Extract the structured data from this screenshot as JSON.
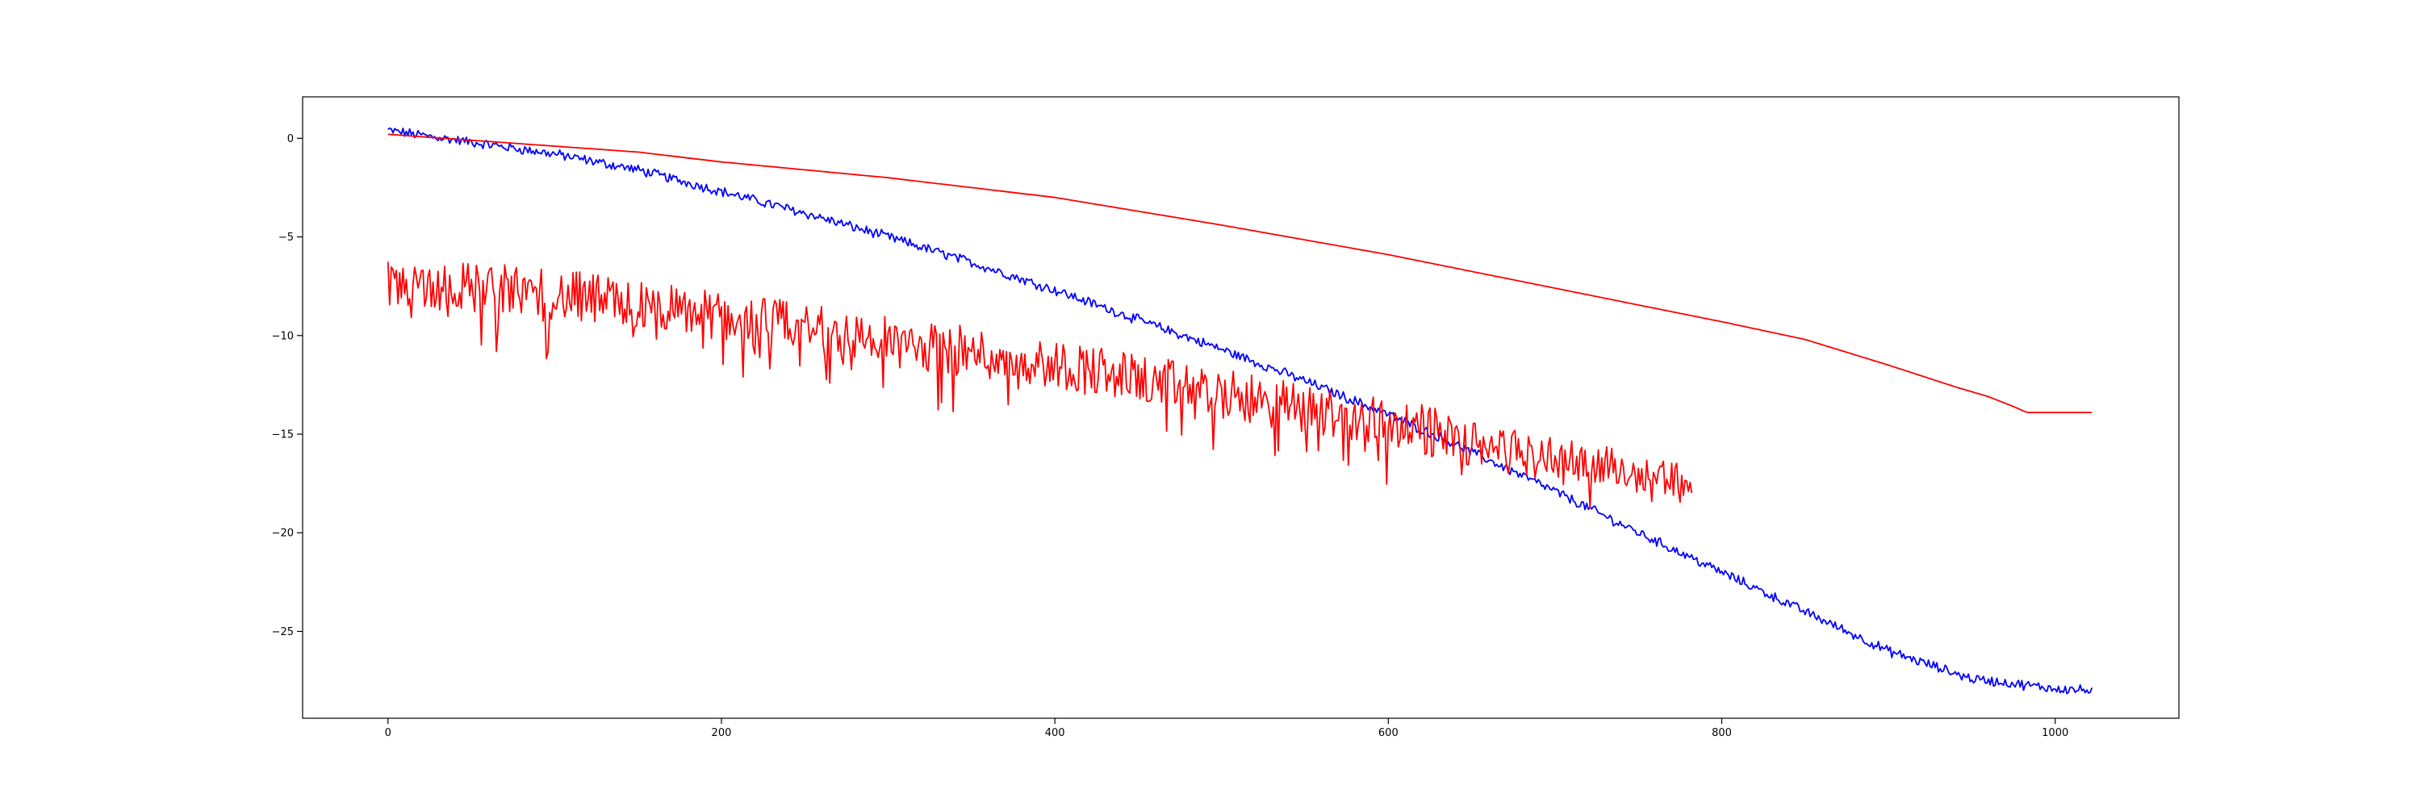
{
  "chart_data": {
    "type": "line",
    "title": "",
    "xlabel": "",
    "ylabel": "",
    "xlim": [
      -51.2,
      1074.2
    ],
    "ylim": [
      -29.4,
      2.1
    ],
    "grid": false,
    "legend": "none",
    "xticks": [
      0,
      200,
      400,
      600,
      800,
      1000
    ],
    "yticks": [
      0,
      -5,
      -10,
      -15,
      -20,
      -25
    ],
    "series": [
      {
        "color": "#0000ff",
        "kind": "noisy",
        "noise": 0.22,
        "anchors": [
          [
            0,
            0.4
          ],
          [
            50,
            -0.2
          ],
          [
            100,
            -0.8
          ],
          [
            150,
            -1.6
          ],
          [
            200,
            -2.7
          ],
          [
            250,
            -3.8
          ],
          [
            300,
            -5.0
          ],
          [
            350,
            -6.3
          ],
          [
            400,
            -7.7
          ],
          [
            450,
            -9.2
          ],
          [
            500,
            -10.7
          ],
          [
            550,
            -12.3
          ],
          [
            600,
            -14.0
          ],
          [
            650,
            -15.9
          ],
          [
            700,
            -17.9
          ],
          [
            750,
            -20.0
          ],
          [
            800,
            -22.0
          ],
          [
            850,
            -24.0
          ],
          [
            900,
            -26.0
          ],
          [
            950,
            -27.4
          ],
          [
            1000,
            -27.9
          ],
          [
            1022,
            -28.0
          ]
        ]
      },
      {
        "color": "#ff0000",
        "kind": "smooth",
        "anchors": [
          [
            0,
            0.2
          ],
          [
            100,
            -0.4
          ],
          [
            150,
            -0.7
          ],
          [
            200,
            -1.2
          ],
          [
            300,
            -2.0
          ],
          [
            350,
            -2.5
          ],
          [
            400,
            -3.0
          ],
          [
            500,
            -4.4
          ],
          [
            600,
            -5.9
          ],
          [
            700,
            -7.6
          ],
          [
            800,
            -9.3
          ],
          [
            850,
            -10.2
          ],
          [
            900,
            -11.5
          ],
          [
            940,
            -12.6
          ],
          [
            960,
            -13.1
          ],
          [
            975,
            -13.6
          ],
          [
            983,
            -13.9
          ],
          [
            1022,
            -13.9
          ]
        ]
      },
      {
        "color": "#ff0000",
        "kind": "spiky",
        "noise": 1.0,
        "anchors": [
          [
            0,
            -7.2
          ],
          [
            100,
            -7.9
          ],
          [
            200,
            -9.0
          ],
          [
            300,
            -10.3
          ],
          [
            400,
            -11.4
          ],
          [
            500,
            -13.0
          ],
          [
            600,
            -14.4
          ],
          [
            700,
            -16.2
          ],
          [
            750,
            -16.8
          ],
          [
            782,
            -17.4
          ]
        ]
      }
    ]
  }
}
